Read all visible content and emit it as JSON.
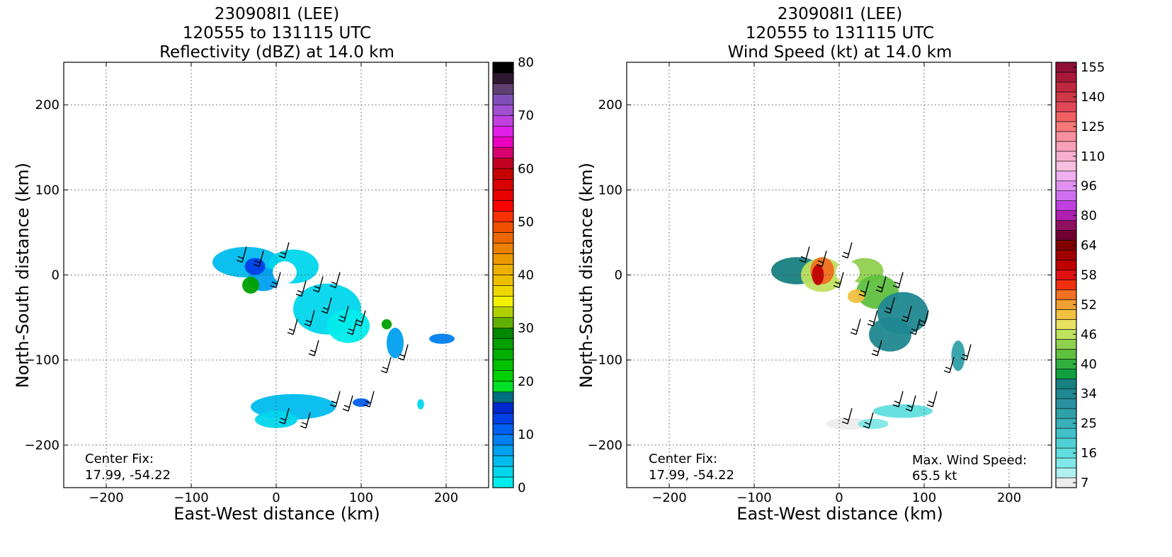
{
  "chart_data": [
    {
      "type": "heatmap",
      "title": [
        "230908I1 (LEE)",
        "120555 to 131115 UTC",
        "Reflectivity (dBZ) at 14.0 km"
      ],
      "xlabel": "East-West distance (km)",
      "ylabel": "North-South distance (km)",
      "xlim": [
        -250,
        250
      ],
      "ylim": [
        -250,
        250
      ],
      "xticks": [
        -200,
        -100,
        0,
        100,
        200
      ],
      "yticks": [
        -200,
        -100,
        0,
        100,
        200
      ],
      "grid": true,
      "annotations": {
        "center_fix_label": "Center Fix:",
        "center_fix_value": "17.99, -54.22"
      },
      "colorbar": {
        "min": 0,
        "max": 80,
        "tick_labels": [
          "0",
          "10",
          "20",
          "30",
          "40",
          "50",
          "60",
          "70",
          "80"
        ],
        "tick_values": [
          0,
          10,
          20,
          30,
          40,
          50,
          60,
          70,
          80
        ],
        "colors": [
          "#00ecec",
          "#00d6ec",
          "#00bcee",
          "#00a0f0",
          "#0080f0",
          "#0060f0",
          "#0040e8",
          "#0028d0",
          "#007080",
          "#00e028",
          "#00d000",
          "#00c000",
          "#00b000",
          "#00a000",
          "#008800",
          "#60b000",
          "#b0d000",
          "#f0f000",
          "#ecd800",
          "#ecc000",
          "#ecb000",
          "#ec9800",
          "#ec8000",
          "#ec6800",
          "#f05000",
          "#fc3000",
          "#fc0000",
          "#e80000",
          "#d80000",
          "#c80000",
          "#c00020",
          "#d80070",
          "#ec00c0",
          "#e020e8",
          "#c040e0",
          "#a050d0",
          "#8050b8",
          "#604070",
          "#301830",
          "#000000"
        ]
      },
      "echo_regions_km": [
        {
          "cx": -35,
          "cy": 15,
          "rx": 40,
          "ry": 18,
          "level": 2
        },
        {
          "cx": 20,
          "cy": 10,
          "rx": 30,
          "ry": 20,
          "level": 1
        },
        {
          "cx": 60,
          "cy": -40,
          "rx": 40,
          "ry": 30,
          "level": 1
        },
        {
          "cx": 85,
          "cy": -60,
          "rx": 25,
          "ry": 20,
          "level": 0
        },
        {
          "cx": -15,
          "cy": -5,
          "rx": 18,
          "ry": 14,
          "level": 3
        },
        {
          "cx": -25,
          "cy": 10,
          "rx": 12,
          "ry": 10,
          "level": 6
        },
        {
          "cx": -30,
          "cy": -12,
          "rx": 10,
          "ry": 10,
          "level": 13
        },
        {
          "cx": 20,
          "cy": -155,
          "rx": 50,
          "ry": 15,
          "level": 2
        },
        {
          "cx": 0,
          "cy": -170,
          "rx": 25,
          "ry": 10,
          "level": 1
        },
        {
          "cx": 140,
          "cy": -80,
          "rx": 10,
          "ry": 18,
          "level": 3
        },
        {
          "cx": 130,
          "cy": -58,
          "rx": 6,
          "ry": 6,
          "level": 13
        },
        {
          "cx": 195,
          "cy": -75,
          "rx": 15,
          "ry": 6,
          "level": 4
        },
        {
          "cx": 100,
          "cy": -150,
          "rx": 10,
          "ry": 5,
          "level": 5
        },
        {
          "cx": 170,
          "cy": -152,
          "rx": 4,
          "ry": 6,
          "level": 1
        }
      ]
    },
    {
      "type": "heatmap",
      "title": [
        "230908I1 (LEE)",
        "120555 to 131115 UTC",
        "Wind Speed (kt) at 14.0 km"
      ],
      "xlabel": "East-West distance (km)",
      "ylabel": "North-South distance (km)",
      "xlim": [
        -250,
        250
      ],
      "ylim": [
        -250,
        250
      ],
      "xticks": [
        -200,
        -100,
        0,
        100,
        200
      ],
      "yticks": [
        -200,
        -100,
        0,
        100,
        200
      ],
      "grid": true,
      "annotations": {
        "center_fix_label": "Center Fix:",
        "center_fix_value": "17.99, -54.22",
        "max_wind_label": "Max. Wind Speed:",
        "max_wind_value": "65.5 kt"
      },
      "colorbar": {
        "min": 7,
        "max": 160,
        "tick_labels": [
          "7",
          "16",
          "25",
          "34",
          "40",
          "46",
          "52",
          "58",
          "64",
          "80",
          "96",
          "110",
          "125",
          "140",
          "155"
        ],
        "colors": [
          "#ececec",
          "#b0f0f0",
          "#80e8e8",
          "#60dede",
          "#50d0d4",
          "#40c0c8",
          "#38b0b8",
          "#30a0a8",
          "#2890a0",
          "#208890",
          "#188080",
          "#10a040",
          "#30b040",
          "#60c040",
          "#90d050",
          "#c0e060",
          "#e8e060",
          "#f0c040",
          "#f0a030",
          "#f07020",
          "#f03010",
          "#e01010",
          "#c00000",
          "#a00000",
          "#800000",
          "#700030",
          "#901060",
          "#b020b0",
          "#c040e0",
          "#d070f0",
          "#e090f0",
          "#f0b0f0",
          "#f8c0e0",
          "#f8b0d0",
          "#f8a0b8",
          "#f890a0",
          "#f87878",
          "#f06060",
          "#e04858",
          "#d03848",
          "#c02840",
          "#a81838",
          "#901038"
        ]
      },
      "speed_regions_km": [
        {
          "cx": -50,
          "cy": 5,
          "rx": 30,
          "ry": 16,
          "band": 10
        },
        {
          "cx": -20,
          "cy": 0,
          "rx": 25,
          "ry": 20,
          "band": 15
        },
        {
          "cx": -20,
          "cy": 5,
          "rx": 14,
          "ry": 16,
          "band": 19
        },
        {
          "cx": -25,
          "cy": 0,
          "rx": 7,
          "ry": 12,
          "band": 22
        },
        {
          "cx": 30,
          "cy": 5,
          "rx": 22,
          "ry": 15,
          "band": 14
        },
        {
          "cx": 45,
          "cy": -20,
          "rx": 25,
          "ry": 20,
          "band": 13
        },
        {
          "cx": 75,
          "cy": -45,
          "rx": 30,
          "ry": 25,
          "band": 9
        },
        {
          "cx": 60,
          "cy": -70,
          "rx": 25,
          "ry": 20,
          "band": 9
        },
        {
          "cx": 20,
          "cy": -25,
          "rx": 10,
          "ry": 8,
          "band": 17
        },
        {
          "cx": 140,
          "cy": -95,
          "rx": 8,
          "ry": 18,
          "band": 7
        },
        {
          "cx": 75,
          "cy": -160,
          "rx": 35,
          "ry": 8,
          "band": 3
        },
        {
          "cx": 10,
          "cy": -175,
          "rx": 25,
          "ry": 7,
          "band": 0
        },
        {
          "cx": 40,
          "cy": -175,
          "rx": 18,
          "ry": 6,
          "band": 2
        }
      ]
    }
  ]
}
